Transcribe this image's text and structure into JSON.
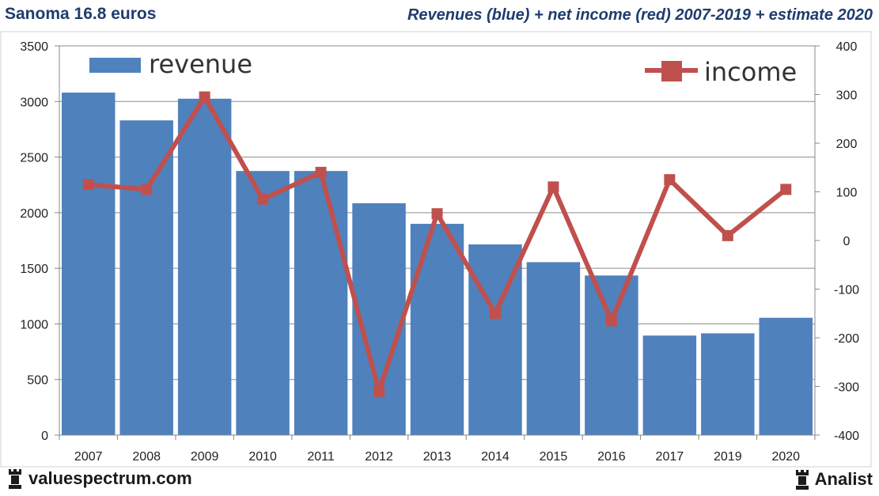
{
  "header": {
    "left_title": "Sanoma 16.8 euros",
    "right_title": "Revenues (blue) + net income (red) 2007-2019 + estimate 2020"
  },
  "footer": {
    "site_label": "valuespectrum.com",
    "brand_label": "Analist",
    "site_icon": "rook-icon",
    "brand_icon": "rook-icon"
  },
  "colors": {
    "bar": "#4f81bd",
    "line": "#c0504d",
    "title": "#1f3c6e"
  },
  "chart_data": {
    "type": "bar",
    "categories": [
      "2007",
      "2008",
      "2009",
      "2010",
      "2011",
      "2012",
      "2013",
      "2014",
      "2015",
      "2016",
      "2017",
      "2019",
      "2020"
    ],
    "series": [
      {
        "name": "revenue",
        "type": "bar",
        "axis": "left",
        "values": [
          3080,
          2830,
          3025,
          2375,
          2375,
          2085,
          1900,
          1715,
          1555,
          1435,
          895,
          915,
          1055
        ]
      },
      {
        "name": "income",
        "type": "line",
        "axis": "right",
        "values": [
          115,
          105,
          295,
          85,
          140,
          -310,
          55,
          -150,
          110,
          -165,
          125,
          10,
          105
        ]
      }
    ],
    "ylim_left": [
      0,
      3500
    ],
    "ylim_right": [
      -400,
      400
    ],
    "yticks_left": [
      0,
      500,
      1000,
      1500,
      2000,
      2500,
      3000,
      3500
    ],
    "yticks_right": [
      -400,
      -300,
      -200,
      -100,
      0,
      100,
      200,
      300,
      400
    ],
    "grid": true,
    "legend_placement": "top-left and top-right"
  }
}
